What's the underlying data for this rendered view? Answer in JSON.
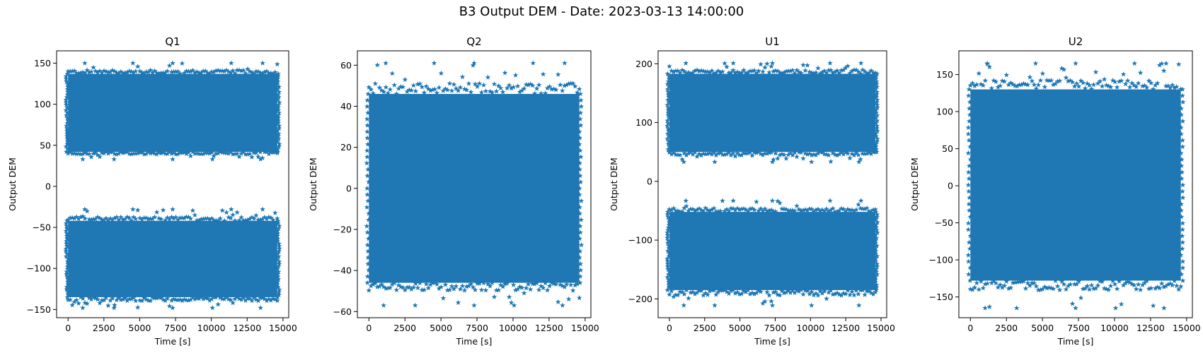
{
  "figure": {
    "title": "B3 Output DEM - Date: 2023-03-13 14:00:00",
    "marker": "star",
    "color": "#1f77b4"
  },
  "chart_data": [
    {
      "type": "scatter",
      "title": "Q1",
      "xlabel": "Time [s]",
      "ylabel": "Output DEM",
      "xlim": [
        -800,
        15400
      ],
      "ylim": [
        -160,
        165
      ],
      "xticks": [
        0,
        2500,
        5000,
        7500,
        10000,
        12500,
        15000
      ],
      "yticks": [
        -150,
        -100,
        -50,
        0,
        50,
        100,
        150
      ],
      "x_range": [
        0,
        14600
      ],
      "bands": [
        {
          "y_min": 42,
          "y_max": 137,
          "outer_min": 33,
          "outer_max": 150
        },
        {
          "y_min": -135,
          "y_max": -42,
          "outer_min": -148,
          "outer_max": -28
        }
      ]
    },
    {
      "type": "scatter",
      "title": "Q2",
      "xlabel": "Time [s]",
      "ylabel": "Output DEM",
      "xlim": [
        -800,
        15400
      ],
      "ylim": [
        -63,
        67
      ],
      "xticks": [
        0,
        2500,
        5000,
        7500,
        10000,
        12500,
        15000
      ],
      "yticks": [
        -60,
        -40,
        -20,
        0,
        20,
        40,
        60
      ],
      "x_range": [
        0,
        14600
      ],
      "bands": [
        {
          "y_min": -46,
          "y_max": 46,
          "outer_min": -57,
          "outer_max": 61
        }
      ]
    },
    {
      "type": "scatter",
      "title": "U1",
      "xlabel": "Time [s]",
      "ylabel": "Output DEM",
      "xlim": [
        -800,
        15400
      ],
      "ylim": [
        -232,
        222
      ],
      "xticks": [
        0,
        2500,
        5000,
        7500,
        10000,
        12500,
        15000
      ],
      "yticks": [
        -200,
        -100,
        0,
        100,
        200
      ],
      "x_range": [
        0,
        14600
      ],
      "bands": [
        {
          "y_min": 50,
          "y_max": 183,
          "outer_min": 33,
          "outer_max": 201
        },
        {
          "y_min": -185,
          "y_max": -52,
          "outer_min": -211,
          "outer_max": -33
        }
      ]
    },
    {
      "type": "scatter",
      "title": "U2",
      "xlabel": "Time [s]",
      "ylabel": "Output DEM",
      "xlim": [
        -800,
        15400
      ],
      "ylim": [
        -178,
        182
      ],
      "xticks": [
        0,
        2500,
        5000,
        7500,
        10000,
        12500,
        15000
      ],
      "yticks": [
        -150,
        -100,
        -50,
        0,
        50,
        100,
        150
      ],
      "x_range": [
        0,
        14600
      ],
      "bands": [
        {
          "y_min": -128,
          "y_max": 130,
          "outer_min": -165,
          "outer_max": 165
        }
      ]
    }
  ]
}
